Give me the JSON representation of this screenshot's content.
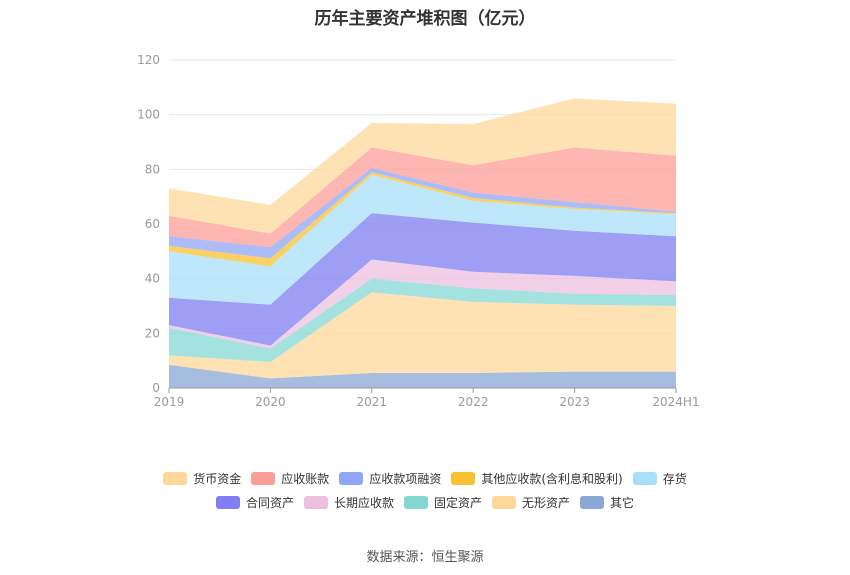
{
  "title": "历年主要资产堆积图（亿元）",
  "source": "数据来源：恒生聚源",
  "colors": {
    "货币资金": "#fdd89a",
    "应收账款": "#fc9e98",
    "应收款项融资": "#8fa6f7",
    "其他应收款(含利息和股利)": "#f7c132",
    "存货": "#a9dffb",
    "合同资产": "#7f7ef2",
    "长期应收款": "#edc0e0",
    "固定资产": "#84d8d3",
    "无形资产": "#fdd89a",
    "其它": "#8aa7d6"
  },
  "chart_data": {
    "type": "area",
    "stacked": true,
    "title": "历年主要资产堆积图（亿元）",
    "categories": [
      "2019",
      "2020",
      "2021",
      "2022",
      "2023",
      "2024H1"
    ],
    "ylim": [
      0,
      120
    ],
    "yticks": [
      0,
      20,
      40,
      60,
      80,
      100,
      120
    ],
    "grid": true,
    "legend_position": "bottom",
    "series": [
      {
        "name": "其它",
        "values": [
          8.5,
          3.5,
          5.5,
          5.5,
          6,
          6
        ]
      },
      {
        "name": "无形资产",
        "values": [
          3.5,
          6,
          29.5,
          26,
          24.5,
          24
        ]
      },
      {
        "name": "固定资产",
        "values": [
          10,
          5,
          5,
          5,
          4,
          4
        ]
      },
      {
        "name": "长期应收款",
        "values": [
          1,
          1,
          7,
          6,
          6.5,
          5
        ]
      },
      {
        "name": "合同资产",
        "values": [
          10,
          15,
          17,
          18,
          16.5,
          16.5
        ]
      },
      {
        "name": "存货",
        "values": [
          17,
          14,
          14,
          8,
          8,
          8
        ]
      },
      {
        "name": "其他应收款(含利息和股利)",
        "values": [
          2,
          3,
          1,
          1,
          0.5,
          0.5
        ]
      },
      {
        "name": "应收款项融资",
        "values": [
          3.5,
          4,
          1.5,
          2,
          2,
          0.5
        ]
      },
      {
        "name": "应收账款",
        "values": [
          7.5,
          5,
          7.5,
          10,
          20,
          20.5
        ]
      },
      {
        "name": "货币资金",
        "values": [
          10,
          10.5,
          9,
          15,
          18,
          19
        ]
      }
    ]
  },
  "legend": {
    "row1": [
      "货币资金",
      "应收账款",
      "应收款项融资",
      "其他应收款(含利息和股利)",
      "存货"
    ],
    "row2": [
      "合同资产",
      "长期应收款",
      "固定资产",
      "无形资产",
      "其它"
    ]
  }
}
